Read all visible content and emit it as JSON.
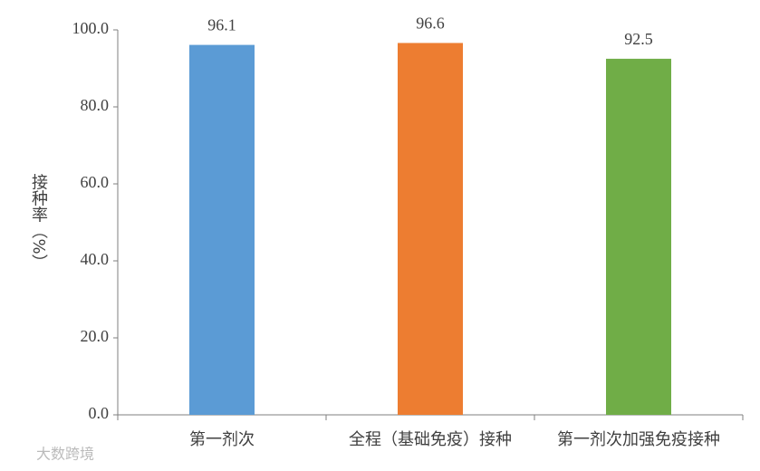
{
  "chart_data": {
    "type": "bar",
    "y_label": "接种率（%）",
    "categories": [
      "第一剂次",
      "全程（基础免疫）接种",
      "第一剂次加强免疫接种"
    ],
    "values": [
      96.1,
      96.6,
      92.5
    ],
    "colors": [
      "#5b9bd5",
      "#ed7d31",
      "#70ad47"
    ],
    "ylim": [
      0,
      100
    ],
    "yticks": [
      {
        "value": 0,
        "label": "0.0"
      },
      {
        "value": 20,
        "label": "20.0"
      },
      {
        "value": 40,
        "label": "40.0"
      },
      {
        "value": 60,
        "label": "60.0"
      },
      {
        "value": 80,
        "label": "80.0"
      },
      {
        "value": 100,
        "label": "100.0"
      }
    ],
    "grid": false
  },
  "watermark": "大数跨境"
}
